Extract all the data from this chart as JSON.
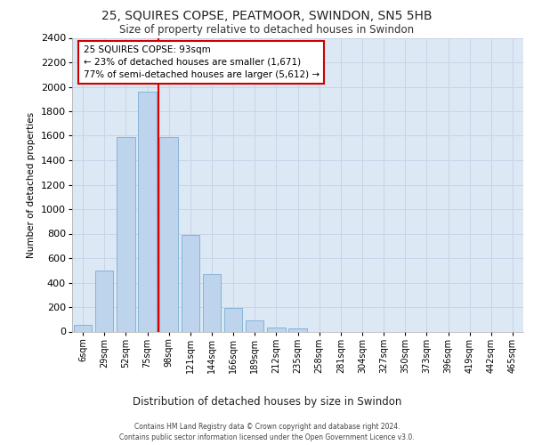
{
  "title1": "25, SQUIRES COPSE, PEATMOOR, SWINDON, SN5 5HB",
  "title2": "Size of property relative to detached houses in Swindon",
  "xlabel": "Distribution of detached houses by size in Swindon",
  "ylabel": "Number of detached properties",
  "categories": [
    "6sqm",
    "29sqm",
    "52sqm",
    "75sqm",
    "98sqm",
    "121sqm",
    "144sqm",
    "166sqm",
    "189sqm",
    "212sqm",
    "235sqm",
    "258sqm",
    "281sqm",
    "304sqm",
    "327sqm",
    "350sqm",
    "373sqm",
    "396sqm",
    "419sqm",
    "442sqm",
    "465sqm"
  ],
  "bar_values": [
    55,
    500,
    1590,
    1960,
    1590,
    790,
    470,
    195,
    90,
    35,
    28,
    0,
    0,
    0,
    0,
    0,
    0,
    0,
    0,
    0,
    0
  ],
  "bar_color": "#bdd4ec",
  "bar_edge_color": "#7aaed4",
  "red_line_index": 3,
  "annotation_text": "25 SQUIRES COPSE: 93sqm\n← 23% of detached houses are smaller (1,671)\n77% of semi-detached houses are larger (5,612) →",
  "annotation_box_fill": "#ffffff",
  "annotation_box_edge": "#cc0000",
  "ylim": [
    0,
    2400
  ],
  "yticks": [
    0,
    200,
    400,
    600,
    800,
    1000,
    1200,
    1400,
    1600,
    1800,
    2000,
    2200,
    2400
  ],
  "grid_color": "#c8d4e8",
  "bg_color": "#dce8f4",
  "footer1": "Contains HM Land Registry data © Crown copyright and database right 2024.",
  "footer2": "Contains public sector information licensed under the Open Government Licence v3.0."
}
